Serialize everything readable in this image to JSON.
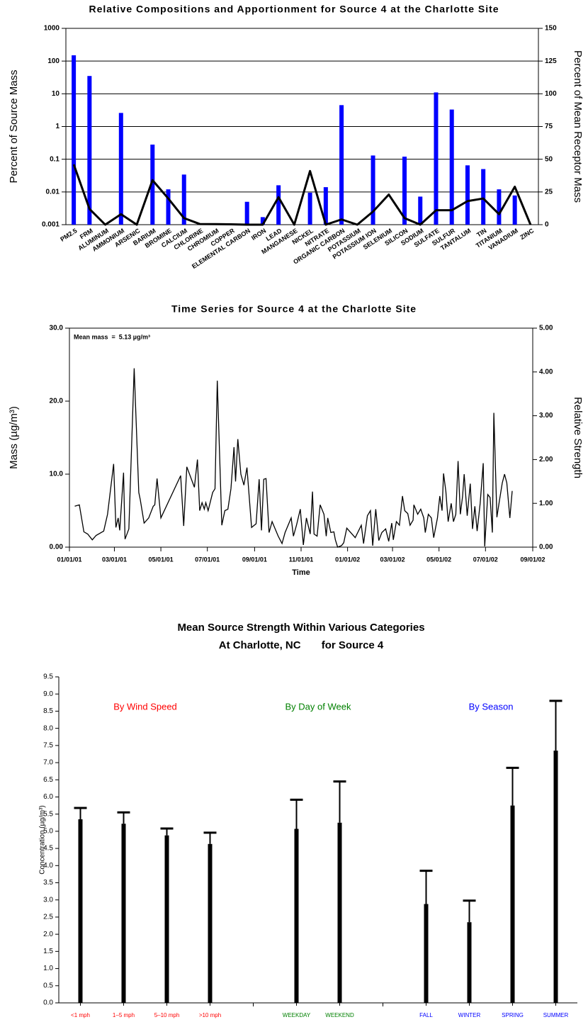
{
  "chart_data": [
    {
      "type": "bar",
      "title": "Relative Compositions and Apportionment for Source 4 at the Charlotte Site",
      "y_label": "Percent of Source Mass",
      "y2_label": "Percent of Mean Receptor Mass",
      "categories": [
        "PM2.5",
        "FRM",
        "ALUMINUM",
        "AMMONIUM",
        "ARSENIC",
        "BARIUM",
        "BROMINE",
        "CALCIUM",
        "CHLORINE",
        "CHROMIUM",
        "COPPER",
        "ELEMENTAL CARBON",
        "IRON",
        "LEAD",
        "MANGANESE",
        "NICKEL",
        "NITRATE",
        "ORGANIC CARBON",
        "POTASSIUM",
        "POTASSIUM ION",
        "SELENIUM",
        "SILICON",
        "SODIUM",
        "SULFATE",
        "SULFUR",
        "TANTALUM",
        "TIN",
        "TITANIUM",
        "VANADIUM",
        "ZINC"
      ],
      "series": [
        {
          "type": "bar",
          "color": "#0000ff",
          "values": [
            150,
            35,
            null,
            2.6,
            null,
            0.28,
            0.012,
            0.034,
            null,
            null,
            null,
            0.005,
            0.0017,
            0.016,
            null,
            0.0095,
            0.014,
            4.5,
            null,
            0.13,
            null,
            0.12,
            0.0072,
            11,
            3.3,
            0.065,
            0.05,
            0.012,
            0.0078,
            null
          ]
        },
        {
          "type": "line",
          "color": "#000000",
          "axis": "y2",
          "values": [
            46,
            12,
            0,
            8,
            0,
            34,
            20,
            5,
            0.5,
            0.4,
            0.3,
            0,
            0,
            21,
            0,
            41,
            0,
            4,
            0,
            10,
            23,
            5,
            0,
            11,
            11,
            18,
            20,
            8,
            29,
            0
          ]
        }
      ],
      "ylog": true,
      "ylim": [
        0.001,
        1000
      ],
      "yticks": [
        0.001,
        0.01,
        0.1,
        1,
        10,
        100,
        1000
      ],
      "y2lim": [
        0,
        150
      ],
      "y2ticks": [
        0,
        25,
        50,
        75,
        100,
        125,
        150
      ],
      "grid": true
    },
    {
      "type": "line",
      "title": "Time Series for Source 4 at the Charlotte Site",
      "annotation": "Mean mass  =  5.13 µg/m³",
      "x_label": "Time",
      "y_label": "Mass (µg/m³)",
      "y2_label": "Relative Strength",
      "x": [
        "2001-01-08",
        "2001-01-14",
        "2001-01-20",
        "2001-01-25",
        "2001-01-31",
        "2001-02-05",
        "2001-02-15",
        "2001-02-20",
        "2001-02-28",
        "2001-03-03",
        "2001-03-06",
        "2001-03-08",
        "2001-03-13",
        "2001-03-15",
        "2001-03-20",
        "2001-03-27",
        "2001-04-02",
        "2001-04-04",
        "2001-04-09",
        "2001-04-15",
        "2001-04-21",
        "2001-04-23",
        "2001-04-26",
        "2001-05-01",
        "2001-05-27",
        "2001-05-31",
        "2001-06-04",
        "2001-06-14",
        "2001-06-18",
        "2001-06-21",
        "2001-06-24",
        "2001-06-27",
        "2001-06-29",
        "2001-07-02",
        "2001-07-08",
        "2001-07-11",
        "2001-07-14",
        "2001-07-20",
        "2001-07-24",
        "2001-07-28",
        "2001-08-01",
        "2001-08-05",
        "2001-08-07",
        "2001-08-10",
        "2001-08-14",
        "2001-08-18",
        "2001-08-22",
        "2001-08-28",
        "2001-09-03",
        "2001-09-07",
        "2001-09-10",
        "2001-09-13",
        "2001-09-16",
        "2001-09-20",
        "2001-09-24",
        "2001-10-02",
        "2001-10-07",
        "2001-10-11",
        "2001-10-19",
        "2001-10-22",
        "2001-10-26",
        "2001-10-31",
        "2001-11-04",
        "2001-11-08",
        "2001-11-13",
        "2001-11-16",
        "2001-11-18",
        "2001-11-22",
        "2001-11-26",
        "2001-12-01",
        "2001-12-04",
        "2001-12-06",
        "2001-12-10",
        "2001-12-14",
        "2001-12-16",
        "2001-12-19",
        "2001-12-24",
        "2001-12-27",
        "2001-12-31",
        "2002-01-11",
        "2002-01-19",
        "2002-01-22",
        "2002-01-27",
        "2002-01-31",
        "2002-02-03",
        "2002-02-07",
        "2002-02-11",
        "2002-02-15",
        "2002-02-20",
        "2002-02-24",
        "2002-02-28",
        "2002-03-02",
        "2002-03-06",
        "2002-03-10",
        "2002-03-14",
        "2002-03-17",
        "2002-03-21",
        "2002-03-24",
        "2002-03-28",
        "2002-03-29",
        "2002-04-03",
        "2002-04-07",
        "2002-04-11",
        "2002-04-13",
        "2002-04-17",
        "2002-04-21",
        "2002-04-24",
        "2002-04-29",
        "2002-05-02",
        "2002-05-05",
        "2002-05-07",
        "2002-05-10",
        "2002-05-13",
        "2002-05-17",
        "2002-05-20",
        "2002-05-23",
        "2002-05-26",
        "2002-05-29",
        "2002-06-01",
        "2002-06-03",
        "2002-06-07",
        "2002-06-11",
        "2002-06-14",
        "2002-06-17",
        "2002-06-20",
        "2002-06-24",
        "2002-06-28",
        "2002-06-30",
        "2002-07-04",
        "2002-07-07",
        "2002-07-10",
        "2002-07-12",
        "2002-07-16",
        "2002-07-19",
        "2002-07-23",
        "2002-07-26",
        "2002-07-29",
        "2002-08-02",
        "2002-08-05"
      ],
      "series": [
        {
          "color": "#000000",
          "values": [
            5.6,
            5.8,
            2.1,
            1.8,
            1.0,
            1.6,
            2.2,
            4.5,
            11.4,
            2.7,
            4.0,
            2.3,
            10.2,
            1.1,
            2.5,
            24.5,
            7.5,
            6.5,
            3.3,
            4.0,
            5.6,
            5.8,
            9.4,
            4.0,
            9.8,
            2.9,
            11.0,
            8.2,
            12.0,
            5.0,
            6.1,
            5.2,
            6.1,
            5.0,
            7.5,
            8.0,
            22.8,
            3.0,
            5.0,
            5.2,
            8.0,
            13.7,
            9.0,
            14.8,
            10.0,
            8.5,
            10.9,
            2.7,
            3.2,
            9.3,
            2.3,
            9.3,
            9.4,
            2.0,
            3.5,
            1.5,
            0.5,
            2.0,
            4.0,
            1.5,
            3.0,
            5.2,
            0.3,
            4.0,
            1.8,
            7.6,
            1.8,
            1.5,
            5.8,
            4.5,
            1.5,
            4.0,
            2.0,
            2.1,
            1.0,
            0.0,
            0.2,
            0.6,
            2.6,
            1.3,
            3.0,
            0.5,
            4.3,
            5.0,
            0.2,
            5.2,
            0.9,
            2.0,
            2.5,
            0.8,
            3.3,
            1.0,
            3.5,
            3.0,
            7.0,
            5.0,
            4.6,
            3.0,
            3.7,
            5.8,
            4.5,
            5.2,
            4.0,
            2.0,
            4.5,
            4.0,
            1.3,
            4.0,
            7.0,
            5.0,
            10.1,
            7.6,
            3.5,
            6.0,
            3.5,
            4.5,
            11.8,
            4.5,
            7.0,
            10.0,
            4.3,
            8.7,
            2.5,
            5.6,
            2.2,
            6.0,
            11.5,
            0.1,
            7.2,
            6.8,
            2.0,
            18.4,
            4.1,
            6.2,
            8.8,
            10.0,
            8.8,
            4.0,
            7.7
          ]
        }
      ],
      "xlim": [
        "2001-01-01",
        "2002-09-01"
      ],
      "xticks": [
        {
          "value": "2001-01-01",
          "label": "01/01/01"
        },
        {
          "value": "2001-03-01",
          "label": "03/01/01"
        },
        {
          "value": "2001-05-01",
          "label": "05/01/01"
        },
        {
          "value": "2001-07-01",
          "label": "07/01/01"
        },
        {
          "value": "2001-09-01",
          "label": "09/01/01"
        },
        {
          "value": "2001-11-01",
          "label": "11/01/01"
        },
        {
          "value": "2002-01-01",
          "label": "01/01/02"
        },
        {
          "value": "2002-03-01",
          "label": "03/01/02"
        },
        {
          "value": "2002-05-01",
          "label": "05/01/02"
        },
        {
          "value": "2002-07-01",
          "label": "07/01/02"
        },
        {
          "value": "2002-09-01",
          "label": "09/01/02"
        }
      ],
      "ylim": [
        0,
        30
      ],
      "yticks": [
        {
          "value": 0,
          "label": "0.00"
        },
        {
          "value": 10,
          "label": "10.0"
        },
        {
          "value": 20,
          "label": "20.0"
        },
        {
          "value": 30,
          "label": "30.0"
        }
      ],
      "y2lim": [
        0,
        5
      ],
      "y2ticks": [
        {
          "value": 0,
          "label": "0.00"
        },
        {
          "value": 1,
          "label": "1.00"
        },
        {
          "value": 2,
          "label": "2.00"
        },
        {
          "value": 3,
          "label": "3.00"
        },
        {
          "value": 4,
          "label": "4.00"
        },
        {
          "value": 5,
          "label": "5.00"
        }
      ]
    },
    {
      "type": "bar",
      "title": "Mean Source Strength Within Various Categories",
      "subtitle": "At Charlotte, NC       for Source 4",
      "y_label": "Concentration (µg/m³)",
      "series": [
        {
          "name": "By Wind Speed",
          "color": "#ff0000",
          "categories": [
            "<1 mph",
            "1–5 mph",
            "5–10 mph",
            ">10 mph"
          ],
          "values": [
            5.35,
            5.22,
            4.88,
            4.63
          ],
          "errors": [
            0.33,
            0.33,
            0.2,
            0.33
          ]
        },
        {
          "name": "By Day of Week",
          "color": "#008000",
          "categories": [
            "WEEKDAY",
            "WEEKEND"
          ],
          "values": [
            5.07,
            5.25
          ],
          "errors": [
            0.85,
            1.2
          ]
        },
        {
          "name": "By Season",
          "color": "#0000ff",
          "categories": [
            "FALL",
            "WINTER",
            "SPRING",
            "SUMMER"
          ],
          "values": [
            2.88,
            2.35,
            5.75,
            7.35
          ],
          "errors": [
            0.97,
            0.63,
            1.1,
            1.45
          ]
        }
      ],
      "bar_color": "#000000",
      "ylim": [
        0,
        9.5
      ],
      "yticks": [
        {
          "value": 0,
          "label": "0.0"
        },
        0.5,
        {
          "value": 1,
          "label": "1.0"
        },
        1.5,
        {
          "value": 2,
          "label": "2.0"
        },
        2.5,
        {
          "value": 3,
          "label": "3.0"
        },
        3.5,
        {
          "value": 4,
          "label": "4.0"
        },
        4.5,
        {
          "value": 5,
          "label": "5.0"
        },
        5.5,
        {
          "value": 6,
          "label": "6.0"
        },
        6.5,
        {
          "value": 7,
          "label": "7.0"
        },
        7.5,
        {
          "value": 8,
          "label": "8.0"
        },
        8.5,
        {
          "value": 9,
          "label": "9.0"
        },
        9.5
      ]
    }
  ]
}
